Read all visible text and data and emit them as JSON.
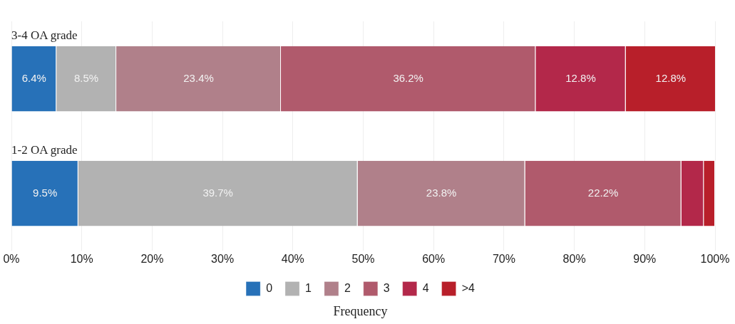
{
  "chart_data": {
    "type": "bar",
    "orientation": "horizontal",
    "stacked": true,
    "xlabel": "Frequency",
    "categories": [
      "3-4 OA grade",
      "1-2 OA grade"
    ],
    "series": [
      {
        "name": "0",
        "color": "#2771b8",
        "values": [
          6.4,
          9.5
        ],
        "value_labels": [
          "6.4%",
          "9.5%"
        ]
      },
      {
        "name": "1",
        "color": "#b2b2b2",
        "values": [
          8.5,
          39.7
        ],
        "value_labels": [
          "8.5%",
          "39.7%"
        ]
      },
      {
        "name": "2",
        "color": "#b0808a",
        "values": [
          23.4,
          23.8
        ],
        "value_labels": [
          "23.4%",
          "23.8%"
        ]
      },
      {
        "name": "3",
        "color": "#b05a6c",
        "values": [
          36.2,
          22.2
        ],
        "value_labels": [
          "36.2%",
          "22.2%"
        ]
      },
      {
        "name": "4",
        "color": "#b3284a",
        "values": [
          12.8,
          3.2
        ],
        "value_labels": [
          "12.8%",
          null
        ]
      },
      {
        "name": ">4",
        "color": "#b81f2a",
        "values": [
          12.8,
          1.6
        ],
        "value_labels": [
          "12.8%",
          null
        ]
      }
    ],
    "xlim": [
      0,
      100
    ],
    "xticks": [
      {
        "value": 0,
        "label": "0%"
      },
      {
        "value": 10,
        "label": "10%"
      },
      {
        "value": 20,
        "label": "20%"
      },
      {
        "value": 30,
        "label": "30%"
      },
      {
        "value": 40,
        "label": "40%"
      },
      {
        "value": 50,
        "label": "50%"
      },
      {
        "value": 60,
        "label": "60%"
      },
      {
        "value": 70,
        "label": "70%"
      },
      {
        "value": 80,
        "label": "80%"
      },
      {
        "value": 90,
        "label": "90%"
      },
      {
        "value": 100,
        "label": "100%"
      }
    ],
    "grid": "x",
    "legend": "bottom"
  }
}
